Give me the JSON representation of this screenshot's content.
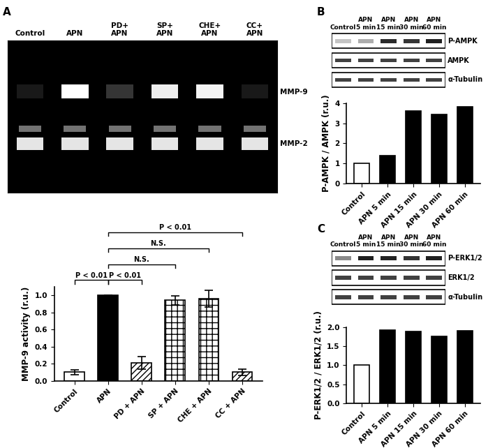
{
  "chart_data": [
    {
      "type": "bar",
      "categories": [
        "Control",
        "APN",
        "PD + APN",
        "SP + APN",
        "CHE + APN",
        "CC + APN"
      ],
      "values": [
        0.1,
        1.0,
        0.21,
        0.94,
        0.96,
        0.1
      ],
      "errors": [
        0.03,
        0.0,
        0.07,
        0.05,
        0.1,
        0.04
      ],
      "colors": [
        "#ffffff",
        "#000000",
        "#ffffff",
        "#ffffff",
        "#ffffff",
        "#ffffff"
      ],
      "y_label": "MMP-9 activity (r.u.)",
      "ylim": [
        0,
        1.1
      ],
      "yticks": [
        {
          "value": 0,
          "label": "0.0"
        },
        {
          "value": 0.2,
          "label": "0.2"
        },
        {
          "value": 0.4,
          "label": "0.4"
        },
        {
          "value": 0.6,
          "label": "0.6"
        },
        {
          "value": 0.8,
          "label": "0.8"
        },
        {
          "value": 1.0,
          "label": "1.0"
        }
      ],
      "comparisons": [
        {
          "groups": [
            "Control",
            "APN"
          ],
          "label": "P < 0.01"
        },
        {
          "groups": [
            "APN",
            "PD + APN"
          ],
          "label": "P < 0.01"
        },
        {
          "groups": [
            "APN",
            "SP + APN"
          ],
          "label": "N.S."
        },
        {
          "groups": [
            "APN",
            "CHE + APN"
          ],
          "label": "N.S."
        },
        {
          "groups": [
            "APN",
            "CC + APN"
          ],
          "label": "P < 0.01"
        }
      ]
    },
    {
      "type": "bar",
      "categories": [
        "Control",
        "APN 5 min",
        "APN 15 min",
        "APN 30 min",
        "APN 60 min"
      ],
      "values": [
        1.0,
        1.38,
        3.62,
        3.42,
        3.8
      ],
      "colors": [
        "#ffffff",
        "#000000",
        "#000000",
        "#000000",
        "#000000"
      ],
      "y_label": "P-AMPK / AMPK (r.u.)",
      "ylim": [
        0,
        4
      ],
      "yticks": [
        0,
        1,
        2,
        3,
        4
      ]
    },
    {
      "type": "bar",
      "categories": [
        "Control",
        "APN 5 min",
        "APN 15 min",
        "APN 30 min",
        "APN 60 min"
      ],
      "values": [
        1.0,
        1.92,
        1.89,
        1.75,
        1.91
      ],
      "colors": [
        "#ffffff",
        "#000000",
        "#000000",
        "#000000",
        "#000000"
      ],
      "y_label": "P-ERK1/2 / ERK1/2 (r.u.)",
      "ylim": [
        0,
        2.0
      ],
      "yticks": [
        {
          "value": 0,
          "label": "0.0"
        },
        {
          "value": 0.5,
          "label": "0.5"
        },
        {
          "value": 1.0,
          "label": "1.0"
        },
        {
          "value": 1.5,
          "label": "1.5"
        },
        {
          "value": 2.0,
          "label": "2.0"
        }
      ]
    }
  ],
  "blots": [
    {
      "panel": "A",
      "lanes": [
        "Control",
        "APN",
        "PD+\nAPN",
        "SP+\nAPN",
        "CHE+\nAPN",
        "CC+\nAPN"
      ],
      "rows": [
        "MMP-9",
        "MMP-2"
      ]
    },
    {
      "panel": "B",
      "lanes": [
        "Control",
        "APN\n5 min",
        "APN\n15 min",
        "APN\n30 min",
        "APN\n60 min"
      ],
      "rows": [
        "P-AMPK",
        "AMPK",
        "α-Tubulin"
      ]
    },
    {
      "panel": "C",
      "lanes": [
        "Control",
        "APN\n5 min",
        "APN\n15 min",
        "APN\n30 min",
        "APN\n60 min"
      ],
      "rows": [
        "P-ERK1/2",
        "ERK1/2",
        "α-Tubulin"
      ]
    }
  ]
}
